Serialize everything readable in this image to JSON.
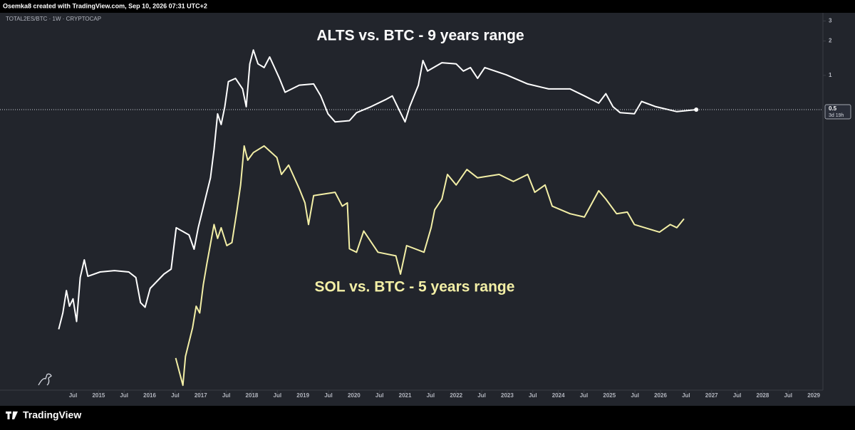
{
  "header": {
    "byline": "Osemka8 created with TradingView.com, Sep 10, 2026 07:31 UTC+2"
  },
  "chart_data": {
    "type": "line",
    "symbol": "TOTAL2ES/BTC · 1W · CRYPTOCAP",
    "log_scale": true,
    "xlim": [
      2013.07,
      2029.18
    ],
    "ylim": [
      0.0018,
      3.34
    ],
    "yticks": [
      3,
      2,
      1
    ],
    "xticks": [
      {
        "value": 2014.5,
        "label": "Jul"
      },
      2015,
      {
        "value": 2015.5,
        "label": "Jul"
      },
      2016,
      {
        "value": 2016.5,
        "label": "Jul"
      },
      2017,
      {
        "value": 2017.5,
        "label": "Jul"
      },
      2018,
      {
        "value": 2018.5,
        "label": "Jul"
      },
      2019,
      {
        "value": 2019.5,
        "label": "Jul"
      },
      2020,
      {
        "value": 2020.5,
        "label": "Jul"
      },
      2021,
      {
        "value": 2021.5,
        "label": "Jul"
      },
      2022,
      {
        "value": 2022.5,
        "label": "Jul"
      },
      2023,
      {
        "value": 2023.5,
        "label": "Jul"
      },
      2024,
      {
        "value": 2024.5,
        "label": "Jul"
      },
      2025,
      {
        "value": 2025.5,
        "label": "Jul"
      },
      2026,
      {
        "value": 2026.5,
        "label": "Jul"
      },
      2027,
      {
        "value": 2027.5,
        "label": "Jul"
      },
      2028,
      {
        "value": 2028.5,
        "label": "Jul"
      },
      2029
    ],
    "last_price": 0.5,
    "countdown": "3d 19h",
    "annotations": [
      {
        "text": "ALTS vs. BTC - 9 years range",
        "color": "#ffffff"
      },
      {
        "text": "SOL vs. BTC - 5 years range",
        "color": "#f3efa6"
      }
    ],
    "series": [
      {
        "color": "#ffffff",
        "x": [
          2014.22,
          2014.3,
          2014.37,
          2014.43,
          2014.5,
          2014.57,
          2014.64,
          2014.72,
          2014.79,
          2015.03,
          2015.31,
          2015.59,
          2015.73,
          2015.82,
          2015.91,
          2016.01,
          2016.28,
          2016.42,
          2016.52,
          2016.77,
          2016.87,
          2016.95,
          2017.12,
          2017.19,
          2017.26,
          2017.33,
          2017.4,
          2017.47,
          2017.54,
          2017.68,
          2017.82,
          2017.89,
          2017.96,
          2018.03,
          2018.12,
          2018.24,
          2018.35,
          2018.54,
          2018.65,
          2018.93,
          2019.21,
          2019.35,
          2019.49,
          2019.63,
          2019.91,
          2020.05,
          2020.33,
          2020.61,
          2020.75,
          2020.89,
          2021.0,
          2021.09,
          2021.26,
          2021.35,
          2021.44,
          2021.72,
          2022.0,
          2022.14,
          2022.28,
          2022.42,
          2022.56,
          2022.98,
          2023.4,
          2023.81,
          2024.23,
          2024.51,
          2024.79,
          2024.93,
          2025.07,
          2025.21,
          2025.49,
          2025.63,
          2025.91,
          2026.32,
          2026.7
        ],
        "values": [
          0.0059,
          0.0082,
          0.0129,
          0.0094,
          0.0109,
          0.0069,
          0.0168,
          0.024,
          0.0172,
          0.0188,
          0.0193,
          0.0188,
          0.0168,
          0.0101,
          0.0092,
          0.0135,
          0.018,
          0.0199,
          0.0459,
          0.0397,
          0.0298,
          0.0459,
          0.094,
          0.126,
          0.223,
          0.459,
          0.37,
          0.53,
          0.88,
          0.94,
          0.76,
          0.53,
          1.26,
          1.67,
          1.26,
          1.17,
          1.45,
          0.94,
          0.71,
          0.82,
          0.84,
          0.66,
          0.46,
          0.39,
          0.4,
          0.47,
          0.53,
          0.61,
          0.66,
          0.49,
          0.39,
          0.53,
          0.82,
          1.35,
          1.09,
          1.29,
          1.26,
          1.09,
          1.17,
          0.94,
          1.17,
          1.01,
          0.84,
          0.76,
          0.76,
          0.66,
          0.57,
          0.69,
          0.53,
          0.47,
          0.46,
          0.59,
          0.53,
          0.48,
          0.5
        ]
      },
      {
        "color": "#f3efa6",
        "x": [
          2016.51,
          2016.65,
          2016.7,
          2016.84,
          2016.91,
          2016.98,
          2017.05,
          2017.12,
          2017.26,
          2017.33,
          2017.4,
          2017.51,
          2017.61,
          2017.71,
          2017.78,
          2017.85,
          2017.92,
          2018.03,
          2018.24,
          2018.49,
          2018.58,
          2018.72,
          2018.93,
          2019.04,
          2019.11,
          2019.21,
          2019.63,
          2019.77,
          2019.87,
          2019.91,
          2020.05,
          2020.19,
          2020.47,
          2020.82,
          2020.91,
          2021.03,
          2021.37,
          2021.51,
          2021.58,
          2021.72,
          2021.83,
          2022.0,
          2022.21,
          2022.42,
          2022.84,
          2023.12,
          2023.4,
          2023.54,
          2023.74,
          2023.88,
          2024.23,
          2024.51,
          2024.79,
          2024.93,
          2025.14,
          2025.35,
          2025.49,
          2025.98,
          2026.19,
          2026.32,
          2026.46
        ],
        "values": [
          0.0033,
          0.0019,
          0.0034,
          0.0061,
          0.0094,
          0.0082,
          0.0145,
          0.0223,
          0.049,
          0.037,
          0.0459,
          0.032,
          0.034,
          0.066,
          0.109,
          0.24,
          0.18,
          0.21,
          0.24,
          0.19,
          0.135,
          0.163,
          0.101,
          0.076,
          0.049,
          0.088,
          0.094,
          0.071,
          0.076,
          0.03,
          0.028,
          0.043,
          0.028,
          0.026,
          0.018,
          0.032,
          0.028,
          0.046,
          0.066,
          0.082,
          0.135,
          0.109,
          0.149,
          0.126,
          0.135,
          0.117,
          0.135,
          0.094,
          0.109,
          0.071,
          0.061,
          0.057,
          0.097,
          0.082,
          0.061,
          0.063,
          0.049,
          0.042,
          0.049,
          0.046,
          0.055
        ]
      }
    ]
  },
  "footer": {
    "brand": "TradingView"
  }
}
